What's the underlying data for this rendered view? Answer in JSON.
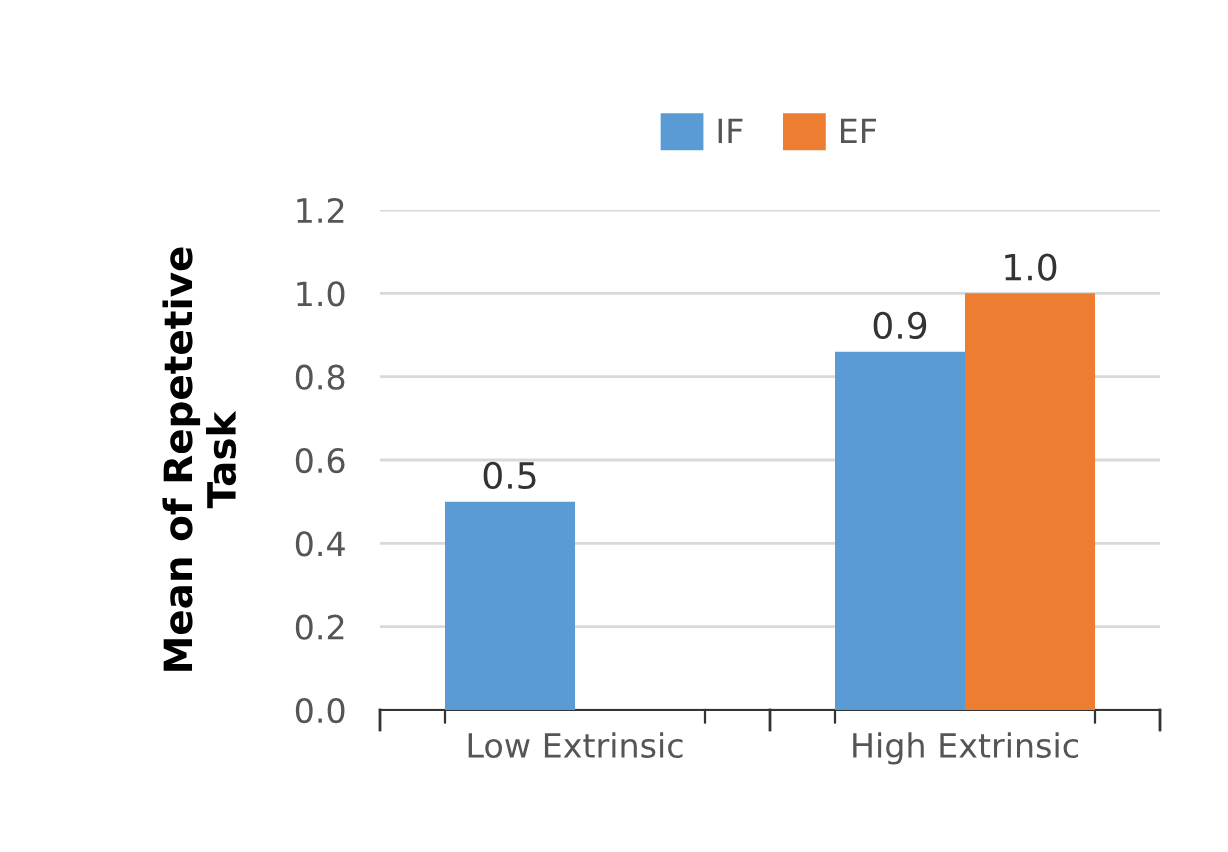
{
  "chart_data": {
    "type": "bar",
    "ylabel": "Mean of Repetetive\nTask",
    "categories": [
      "Low Extrinsic",
      "High Extrinsic"
    ],
    "series": [
      {
        "name": "IF",
        "color": "#5b9bd5",
        "values": [
          0.5,
          0.86
        ],
        "value_labels": [
          "0.5",
          "0.9"
        ]
      },
      {
        "name": "EF",
        "color": "#ed7d31",
        "values": [
          null,
          1.0
        ],
        "value_labels": [
          null,
          "1.0"
        ]
      }
    ],
    "ylim": [
      0,
      1.2
    ],
    "yticks": [
      {
        "value": 0,
        "label": "0.0"
      },
      {
        "value": 0.2,
        "label": "0.2"
      },
      {
        "value": 0.4,
        "label": "0.4"
      },
      {
        "value": 0.6,
        "label": "0.6"
      },
      {
        "value": 0.8,
        "label": "0.8"
      },
      {
        "value": 1.0,
        "label": "1.0"
      },
      {
        "value": 1.2,
        "label": "1.2"
      }
    ],
    "grid": "y",
    "legend": "top"
  }
}
